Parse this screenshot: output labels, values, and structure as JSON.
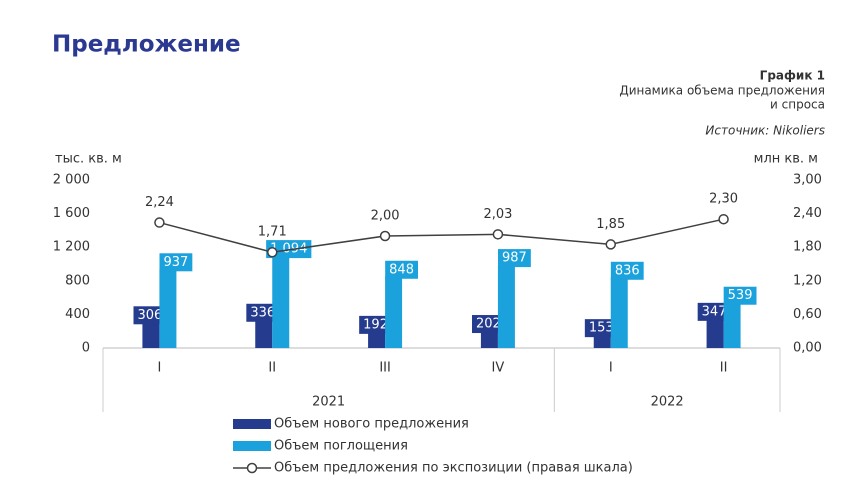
{
  "page_title": "Предложение",
  "chart_data": {
    "type": "bar",
    "label": "График 1",
    "title": [
      "Динамика объема предложения",
      "и спроса"
    ],
    "source": "Источник: Nikoliers",
    "y_label": "тыс. кв. м",
    "y2_label": "млн кв. м",
    "categories": [
      "I",
      "II",
      "III",
      "IV",
      "I",
      "II"
    ],
    "x_groups": [
      "2021",
      "2022"
    ],
    "series": [
      {
        "name": "Объем нового предложения",
        "type": "bar",
        "color": "#253b8e",
        "values": [
          306,
          336,
          192,
          202,
          153,
          347
        ]
      },
      {
        "name": "Объем поглощения",
        "type": "bar",
        "color": "#1ba1dc",
        "values": [
          937,
          1094,
          848,
          987,
          836,
          539
        ],
        "value_labels": [
          "937",
          "1 094",
          "848",
          "987",
          "836",
          "539"
        ]
      },
      {
        "name": "Объем предложения по экспозиции (правая шкала)",
        "type": "line",
        "axis": "y2",
        "color": "#404040",
        "values": [
          2.24,
          1.71,
          2.0,
          2.03,
          1.85,
          2.3
        ],
        "value_labels": [
          "2,24",
          "1,71",
          "2,00",
          "2,03",
          "1,85",
          "2,30"
        ]
      }
    ],
    "ylim": [
      0,
      2000
    ],
    "yticks": [
      0,
      400,
      800,
      {
        "value": 1200,
        "label": "1 200"
      },
      {
        "value": 1600,
        "label": "1 600"
      },
      {
        "value": 2000,
        "label": "2 000"
      }
    ],
    "y2lim": [
      0,
      3
    ],
    "y2ticks": [
      {
        "value": 0,
        "label": "0,00"
      },
      {
        "value": 0.6,
        "label": "0,60"
      },
      {
        "value": 1.2,
        "label": "1,20"
      },
      {
        "value": 1.8,
        "label": "1,80"
      },
      {
        "value": 2.4,
        "label": "2,40"
      },
      {
        "value": 3,
        "label": "3,00"
      }
    ],
    "grid": false
  }
}
